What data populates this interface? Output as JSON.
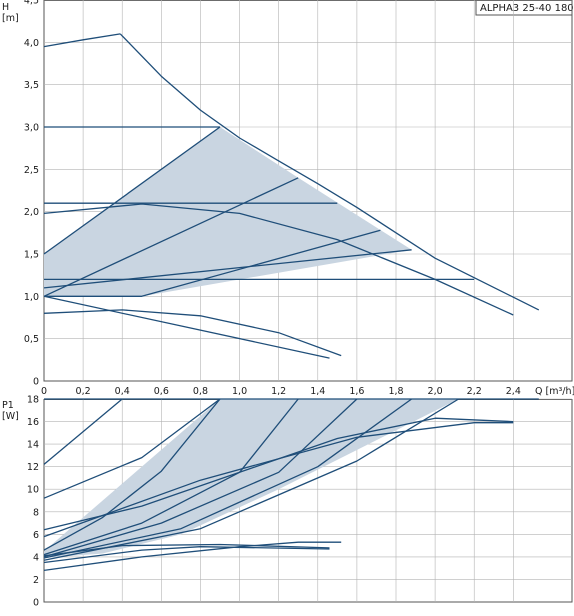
{
  "model_label": "ALPHA3 25-40 180",
  "colors": {
    "curve": "#1f4e79",
    "fill": "#c9d5e1",
    "grid": "#b3b3b3",
    "axis": "#555555",
    "text": "#1a1a1a"
  },
  "chart_data": [
    {
      "type": "line",
      "id": "head",
      "ylabel_top": "H",
      "ylabel_unit": "[m]",
      "xlabel": "Q [m³/h]",
      "xlim": [
        0,
        2.7
      ],
      "ylim": [
        0,
        4.5
      ],
      "grid": true,
      "x_ticks": [
        "0",
        "0,2",
        "0,4",
        "0,6",
        "0,8",
        "1,0",
        "1,2",
        "1,4",
        "1,6",
        "1,8",
        "2,0",
        "2,2",
        "2,4"
      ],
      "y_ticks": [
        "0",
        "0,5",
        "1,0",
        "1,5",
        "2,0",
        "2,5",
        "3,0",
        "3,5",
        "4,0",
        "4,5"
      ],
      "operating_area_polygon": [
        [
          0,
          1.5
        ],
        [
          0.9,
          3.0
        ],
        [
          1.3,
          2.4
        ],
        [
          1.88,
          1.55
        ],
        [
          0.5,
          1.0
        ],
        [
          0,
          1.0
        ]
      ],
      "series": [
        {
          "points": [
            [
              0,
              3.95
            ],
            [
              0.2,
              4.03
            ],
            [
              0.39,
              4.1
            ]
          ]
        },
        {
          "points": [
            [
              0.39,
              4.1
            ],
            [
              0.6,
              3.6
            ],
            [
              0.8,
              3.2
            ],
            [
              1.0,
              2.87
            ],
            [
              1.2,
              2.6
            ],
            [
              1.4,
              2.33
            ],
            [
              1.6,
              2.05
            ],
            [
              1.8,
              1.75
            ],
            [
              2.0,
              1.45
            ],
            [
              2.2,
              1.22
            ],
            [
              2.4,
              0.99
            ],
            [
              2.53,
              0.84
            ]
          ]
        },
        {
          "points": [
            [
              0,
              3.0
            ],
            [
              0.9,
              3.0
            ]
          ]
        },
        {
          "points": [
            [
              0,
              1.5
            ],
            [
              0.9,
              3.0
            ]
          ]
        },
        {
          "points": [
            [
              0,
              1.0
            ],
            [
              1.3,
              2.4
            ]
          ]
        },
        {
          "points": [
            [
              0,
              1.0
            ],
            [
              0.5,
              1.0
            ],
            [
              1.72,
              1.78
            ]
          ]
        },
        {
          "points": [
            [
              0,
              1.1
            ],
            [
              1.88,
              1.55
            ]
          ]
        },
        {
          "points": [
            [
              0,
              2.1
            ],
            [
              1.5,
              2.1
            ]
          ]
        },
        {
          "points": [
            [
              0,
              1.2
            ],
            [
              2.2,
              1.2
            ]
          ]
        },
        {
          "points": [
            [
              0,
              1.98
            ],
            [
              0.5,
              2.09
            ],
            [
              1.0,
              1.98
            ],
            [
              1.5,
              1.67
            ],
            [
              2.0,
              1.2
            ],
            [
              2.4,
              0.78
            ]
          ]
        },
        {
          "points": [
            [
              0,
              0.8
            ],
            [
              0.4,
              0.84
            ],
            [
              0.8,
              0.77
            ],
            [
              1.2,
              0.57
            ],
            [
              1.52,
              0.3
            ]
          ]
        },
        {
          "points": [
            [
              0,
              1.0
            ],
            [
              1.46,
              0.27
            ]
          ]
        }
      ]
    },
    {
      "type": "line",
      "id": "power",
      "ylabel_top": "P1",
      "ylabel_unit": "[W]",
      "xlim": [
        0,
        2.7
      ],
      "ylim": [
        0,
        18
      ],
      "grid": true,
      "y_ticks": [
        "0",
        "2",
        "4",
        "6",
        "8",
        "10",
        "12",
        "14",
        "16",
        "18"
      ],
      "operating_area_polygon": [
        [
          0,
          4.5
        ],
        [
          0.9,
          18.0
        ],
        [
          2.12,
          18.0
        ],
        [
          1.2,
          10.0
        ],
        [
          0.7,
          6.0
        ],
        [
          0.3,
          4.3
        ],
        [
          0,
          3.9
        ]
      ],
      "series": [
        {
          "points": [
            [
              0,
              18.0
            ],
            [
              2.53,
              18.0
            ]
          ]
        },
        {
          "points": [
            [
              0,
              12.2
            ],
            [
              0.4,
              18.0
            ]
          ]
        },
        {
          "points": [
            [
              0,
              9.2
            ],
            [
              0.5,
              12.8
            ],
            [
              0.9,
              18.0
            ]
          ]
        },
        {
          "points": [
            [
              0,
              4.6
            ],
            [
              0.3,
              7.5
            ],
            [
              0.6,
              11.6
            ],
            [
              0.9,
              18.0
            ]
          ]
        },
        {
          "points": [
            [
              0,
              4.2
            ],
            [
              0.5,
              7.0
            ],
            [
              1.0,
              11.5
            ],
            [
              1.3,
              18.0
            ]
          ]
        },
        {
          "points": [
            [
              0,
              4.0
            ],
            [
              0.6,
              7.0
            ],
            [
              1.2,
              11.5
            ],
            [
              1.6,
              18.0
            ]
          ]
        },
        {
          "points": [
            [
              0,
              3.9
            ],
            [
              0.7,
              6.5
            ],
            [
              1.4,
              12.0
            ],
            [
              1.88,
              18.0
            ]
          ]
        },
        {
          "points": [
            [
              0,
              3.7
            ],
            [
              0.8,
              6.5
            ],
            [
              1.6,
              12.5
            ],
            [
              2.12,
              18.0
            ]
          ]
        },
        {
          "points": [
            [
              0,
              6.4
            ],
            [
              0.5,
              8.5
            ],
            [
              1.0,
              11.5
            ],
            [
              1.5,
              14.5
            ],
            [
              2.0,
              16.3
            ],
            [
              2.4,
              16.0
            ]
          ]
        },
        {
          "points": [
            [
              0,
              5.8
            ],
            [
              0.8,
              10.8
            ],
            [
              1.6,
              14.6
            ],
            [
              2.2,
              15.9
            ],
            [
              2.4,
              15.9
            ]
          ]
        },
        {
          "points": [
            [
              0,
              2.8
            ],
            [
              0.5,
              4.0
            ],
            [
              1.0,
              4.9
            ],
            [
              1.3,
              5.3
            ],
            [
              1.52,
              5.3
            ]
          ]
        },
        {
          "points": [
            [
              0,
              3.5
            ],
            [
              0.5,
              4.6
            ],
            [
              0.8,
              4.9
            ],
            [
              1.46,
              4.7
            ]
          ]
        },
        {
          "points": [
            [
              0,
              4.1
            ],
            [
              0.4,
              5.0
            ],
            [
              0.9,
              5.1
            ],
            [
              1.46,
              4.8
            ]
          ]
        }
      ]
    }
  ]
}
